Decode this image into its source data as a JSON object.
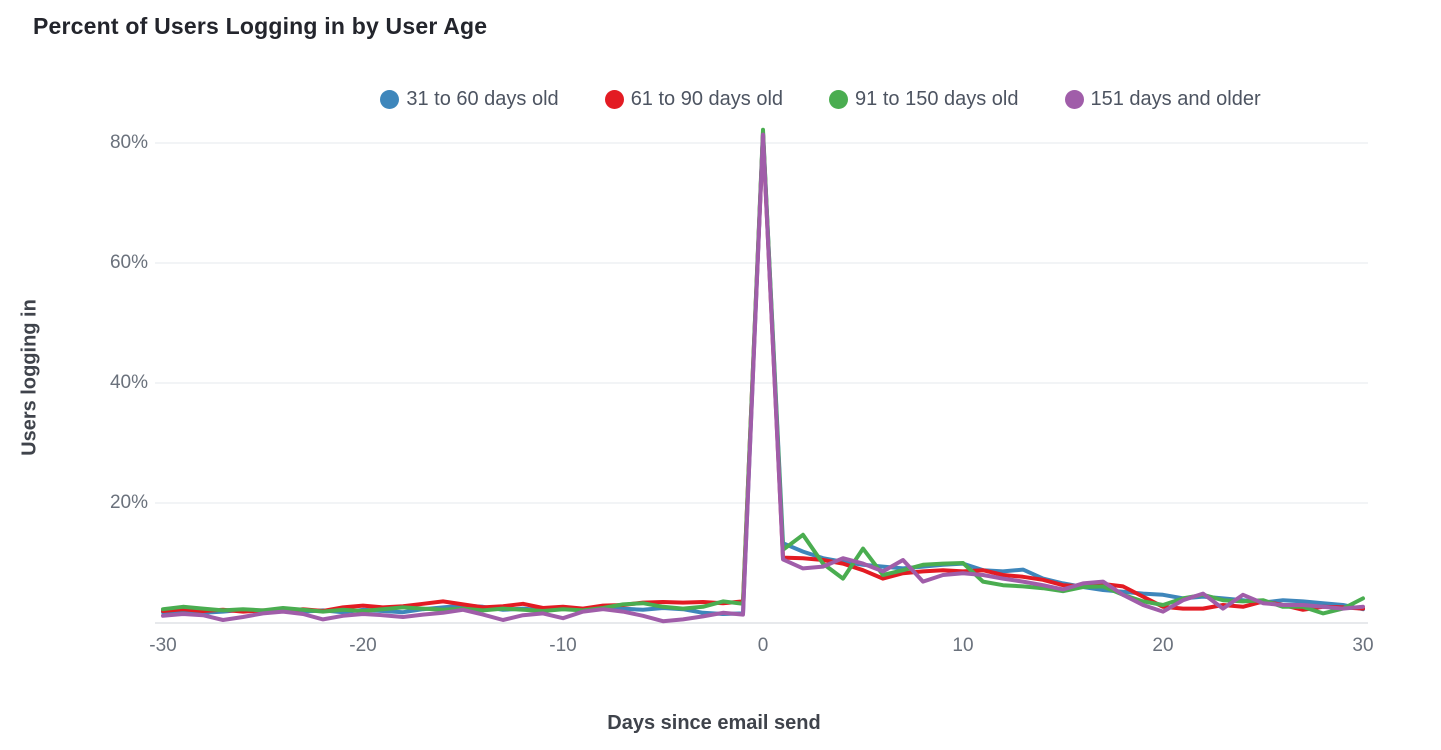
{
  "chart_data": {
    "type": "line",
    "title": "Percent of Users Logging in by User Age",
    "xlabel": "Days since email send",
    "ylabel": "Users logging in",
    "legend_position": "top",
    "grid": true,
    "xlim": [
      -30,
      30
    ],
    "ylim": [
      0,
      84
    ],
    "x_ticks": {
      "values": [
        -30,
        -20,
        -10,
        0,
        10,
        20,
        30
      ],
      "labels": [
        "-30",
        "-20",
        "-10",
        "0",
        "10",
        "20",
        "30"
      ]
    },
    "y_ticks": {
      "values": [
        20,
        40,
        60,
        80
      ],
      "labels": [
        "20%",
        "40%",
        "60%",
        "80%"
      ]
    },
    "x": [
      -30,
      -29,
      -28,
      -27,
      -26,
      -25,
      -24,
      -23,
      -22,
      -21,
      -20,
      -19,
      -18,
      -17,
      -16,
      -15,
      -14,
      -13,
      -12,
      -11,
      -10,
      -9,
      -8,
      -7,
      -6,
      -5,
      -4,
      -3,
      -2,
      -1,
      0,
      1,
      2,
      3,
      4,
      5,
      6,
      7,
      8,
      9,
      10,
      11,
      12,
      13,
      14,
      15,
      16,
      17,
      18,
      19,
      20,
      21,
      22,
      23,
      24,
      25,
      26,
      27,
      28,
      29,
      30
    ],
    "series": [
      {
        "name": "31 to 60 days old",
        "color": "#3e86bb",
        "values": [
          1.8,
          2.1,
          1.7,
          1.9,
          2.2,
          2.0,
          2.4,
          1.9,
          2.1,
          1.8,
          2.2,
          2.0,
          1.8,
          2.3,
          2.6,
          2.9,
          2.7,
          2.2,
          2.4,
          2.1,
          2.5,
          2.2,
          2.6,
          2.4,
          2.2,
          2.5,
          2.3,
          1.7,
          1.5,
          1.6,
          81.8,
          13.3,
          11.9,
          10.8,
          10.2,
          9.7,
          9.4,
          9.1,
          9.4,
          9.7,
          9.9,
          8.8,
          8.6,
          8.9,
          7.4,
          6.6,
          6.0,
          5.5,
          5.2,
          4.9,
          4.7,
          4.1,
          4.4,
          4.1,
          3.8,
          3.4,
          3.8,
          3.6,
          3.3,
          3.0,
          2.3
        ]
      },
      {
        "name": "61 to 90 days old",
        "color": "#e31b23",
        "values": [
          2.0,
          2.3,
          2.0,
          2.2,
          1.9,
          2.1,
          2.0,
          2.3,
          2.0,
          2.6,
          2.9,
          2.6,
          2.8,
          3.2,
          3.6,
          3.1,
          2.6,
          2.8,
          3.2,
          2.5,
          2.7,
          2.4,
          2.9,
          3.0,
          3.4,
          3.5,
          3.4,
          3.5,
          3.3,
          3.6,
          81.5,
          10.9,
          10.8,
          10.5,
          9.9,
          8.8,
          7.4,
          8.3,
          8.6,
          8.8,
          8.6,
          8.8,
          8.0,
          7.7,
          7.2,
          6.3,
          6.1,
          6.5,
          6.1,
          4.4,
          2.7,
          2.4,
          2.4,
          3.0,
          2.7,
          3.6,
          3.0,
          2.2,
          2.7,
          2.6,
          2.4
        ]
      },
      {
        "name": "91 to 150 days old",
        "color": "#4aad50",
        "values": [
          2.3,
          2.7,
          2.4,
          2.1,
          2.3,
          2.1,
          2.5,
          2.2,
          1.9,
          2.2,
          2.0,
          2.3,
          2.6,
          2.4,
          2.2,
          2.4,
          2.1,
          2.4,
          2.2,
          2.0,
          2.3,
          2.1,
          2.5,
          3.1,
          3.3,
          2.7,
          2.4,
          2.7,
          3.6,
          3.2,
          82.2,
          12.2,
          14.7,
          9.9,
          7.4,
          12.4,
          8.0,
          8.8,
          9.7,
          9.9,
          10.0,
          6.9,
          6.3,
          6.1,
          5.8,
          5.3,
          6.0,
          6.1,
          4.7,
          3.6,
          3.0,
          4.1,
          4.7,
          3.8,
          3.6,
          3.8,
          2.7,
          2.7,
          1.6,
          2.4,
          4.1
        ]
      },
      {
        "name": "151 days and older",
        "color": "#a05da9",
        "values": [
          1.2,
          1.5,
          1.3,
          0.5,
          1.0,
          1.6,
          1.9,
          1.5,
          0.6,
          1.2,
          1.5,
          1.3,
          1.0,
          1.4,
          1.7,
          2.2,
          1.4,
          0.5,
          1.3,
          1.6,
          0.8,
          1.9,
          2.3,
          1.9,
          1.2,
          0.3,
          0.6,
          1.1,
          1.7,
          1.4,
          81.4,
          10.6,
          9.1,
          9.4,
          10.8,
          9.9,
          8.6,
          10.5,
          6.9,
          8.0,
          8.3,
          8.0,
          7.4,
          6.9,
          6.3,
          5.6,
          6.6,
          6.9,
          4.7,
          3.0,
          1.9,
          3.8,
          4.9,
          2.4,
          4.7,
          3.3,
          3.0,
          3.0,
          2.7,
          2.4,
          2.7
        ]
      }
    ],
    "style": {
      "gridline_color": "#eef0f3",
      "axisline_color": "#e7e9ec",
      "line_width": 4
    }
  }
}
